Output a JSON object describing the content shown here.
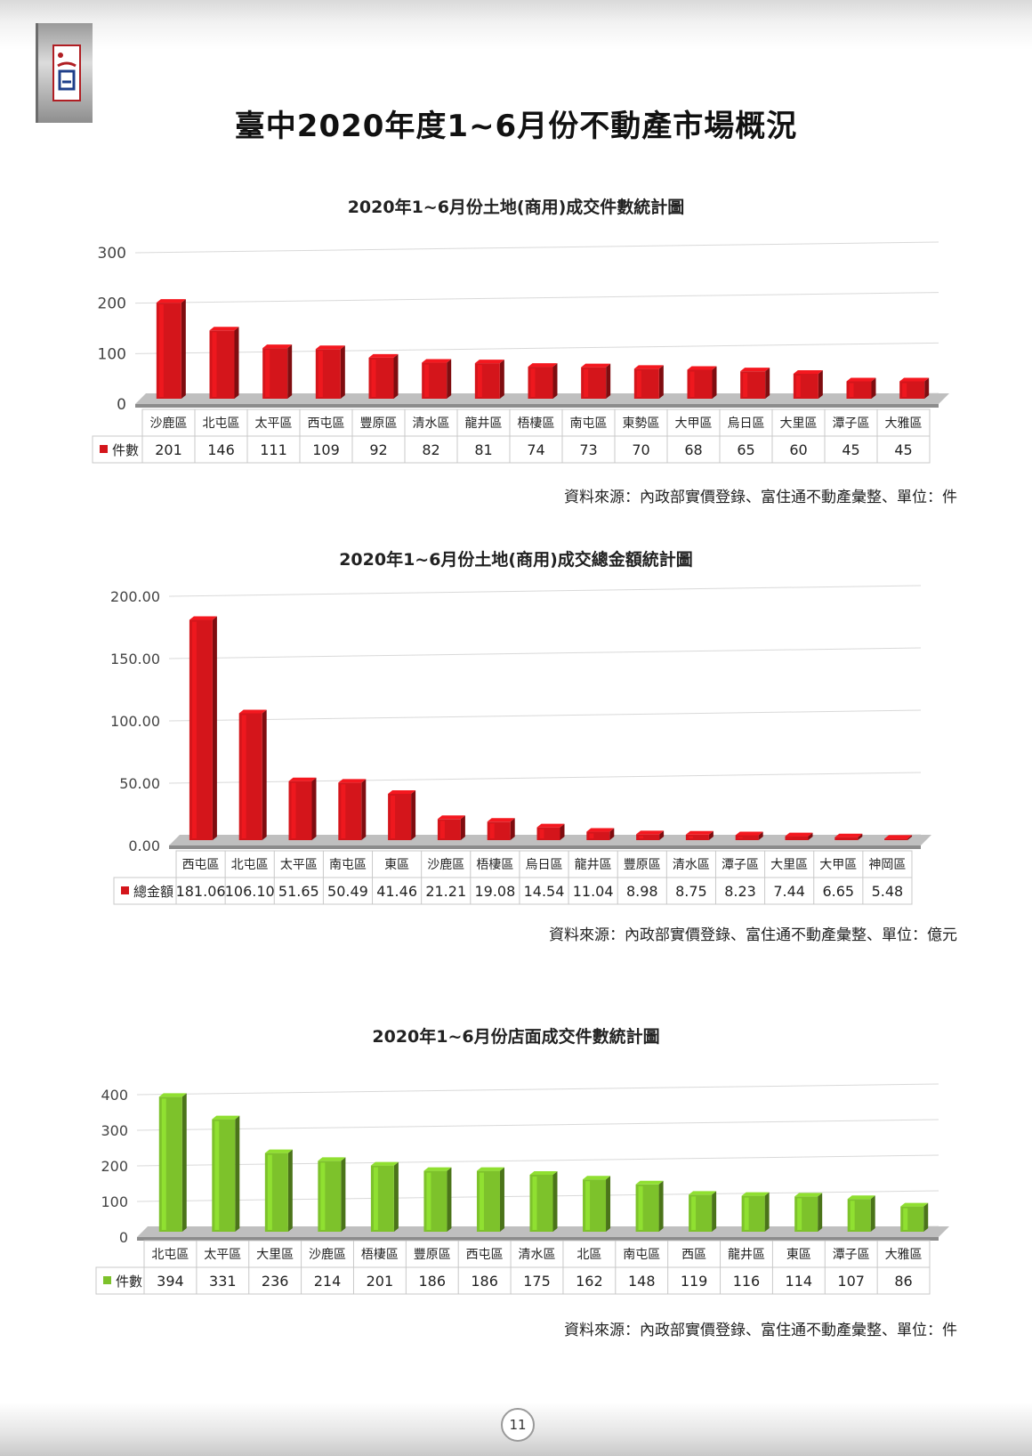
{
  "page": {
    "title": "臺中2020年度1~6月份不動產市場概況",
    "page_number": "11"
  },
  "chart_data": [
    {
      "type": "bar",
      "title": "2020年1~6月份土地(商用)成交件數統計圖",
      "categories": [
        "沙鹿區",
        "北屯區",
        "太平區",
        "西屯區",
        "豐原區",
        "清水區",
        "龍井區",
        "梧棲區",
        "南屯區",
        "東勢區",
        "大甲區",
        "烏日區",
        "大里區",
        "潭子區",
        "大雅區"
      ],
      "series": [
        {
          "name": "件數",
          "values": [
            201,
            146,
            111,
            109,
            92,
            82,
            81,
            74,
            73,
            70,
            68,
            65,
            60,
            45,
            45
          ]
        }
      ],
      "value_labels": [
        "201",
        "146",
        "111",
        "109",
        "92",
        "82",
        "81",
        "74",
        "73",
        "70",
        "68",
        "65",
        "60",
        "45",
        "45"
      ],
      "ylim": [
        0,
        300
      ],
      "yticks": [
        "0",
        "100",
        "200",
        "300"
      ],
      "color": "#d4151b",
      "legend": "data-table-left",
      "grid": true,
      "source": "資料來源：內政部實價登錄、富住通不動產彙整、單位：件"
    },
    {
      "type": "bar",
      "title": "2020年1~6月份土地(商用)成交總金額統計圖",
      "categories": [
        "西屯區",
        "北屯區",
        "太平區",
        "南屯區",
        "東區",
        "沙鹿區",
        "梧棲區",
        "烏日區",
        "龍井區",
        "豐原區",
        "清水區",
        "潭子區",
        "大里區",
        "大甲區",
        "神岡區"
      ],
      "series": [
        {
          "name": "總金額",
          "values": [
            181.06,
            106.1,
            51.65,
            50.49,
            41.46,
            21.21,
            19.08,
            14.54,
            11.04,
            8.98,
            8.75,
            8.23,
            7.44,
            6.65,
            5.48
          ]
        }
      ],
      "value_labels": [
        "181.06",
        "106.10",
        "51.65",
        "50.49",
        "41.46",
        "21.21",
        "19.08",
        "14.54",
        "11.04",
        "8.98",
        "8.75",
        "8.23",
        "7.44",
        "6.65",
        "5.48"
      ],
      "ylim": [
        0,
        200
      ],
      "yticks": [
        "0.00",
        "50.00",
        "100.00",
        "150.00",
        "200.00"
      ],
      "color": "#d4151b",
      "legend": "data-table-left",
      "grid": true,
      "source": "資料來源：內政部實價登錄、富住通不動產彙整、單位：億元"
    },
    {
      "type": "bar",
      "title": "2020年1~6月份店面成交件數統計圖",
      "categories": [
        "北屯區",
        "太平區",
        "大里區",
        "沙鹿區",
        "梧棲區",
        "豐原區",
        "西屯區",
        "清水區",
        "北區",
        "南屯區",
        "西區",
        "龍井區",
        "東區",
        "潭子區",
        "大雅區"
      ],
      "series": [
        {
          "name": "件數",
          "values": [
            394,
            331,
            236,
            214,
            201,
            186,
            186,
            175,
            162,
            148,
            119,
            116,
            114,
            107,
            86
          ]
        }
      ],
      "value_labels": [
        "394",
        "331",
        "236",
        "214",
        "201",
        "186",
        "186",
        "175",
        "162",
        "148",
        "119",
        "116",
        "114",
        "107",
        "86"
      ],
      "ylim": [
        0,
        400
      ],
      "yticks": [
        "0",
        "100",
        "200",
        "300",
        "400"
      ],
      "color": "#7dc22b",
      "legend": "data-table-left",
      "grid": true,
      "source": "資料來源：內政部實價登錄、富住通不動產彙整、單位：件"
    }
  ]
}
